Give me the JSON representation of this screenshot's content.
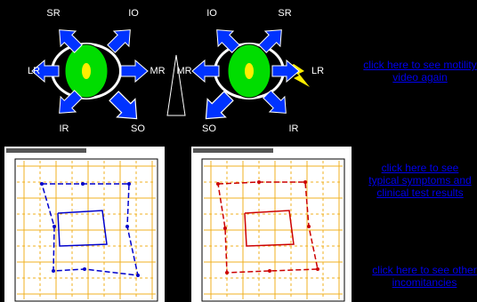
{
  "left_eye_labels": [
    "SR",
    "IO",
    "LR",
    "MR",
    "IR",
    "SO"
  ],
  "right_eye_labels": [
    "IO",
    "SR",
    "MR",
    "LR",
    "SO",
    "IR"
  ],
  "links": [
    "click here to see motility video again",
    "click here to see typical symptoms and clinical test results",
    "click here to see other incomitancies"
  ]
}
